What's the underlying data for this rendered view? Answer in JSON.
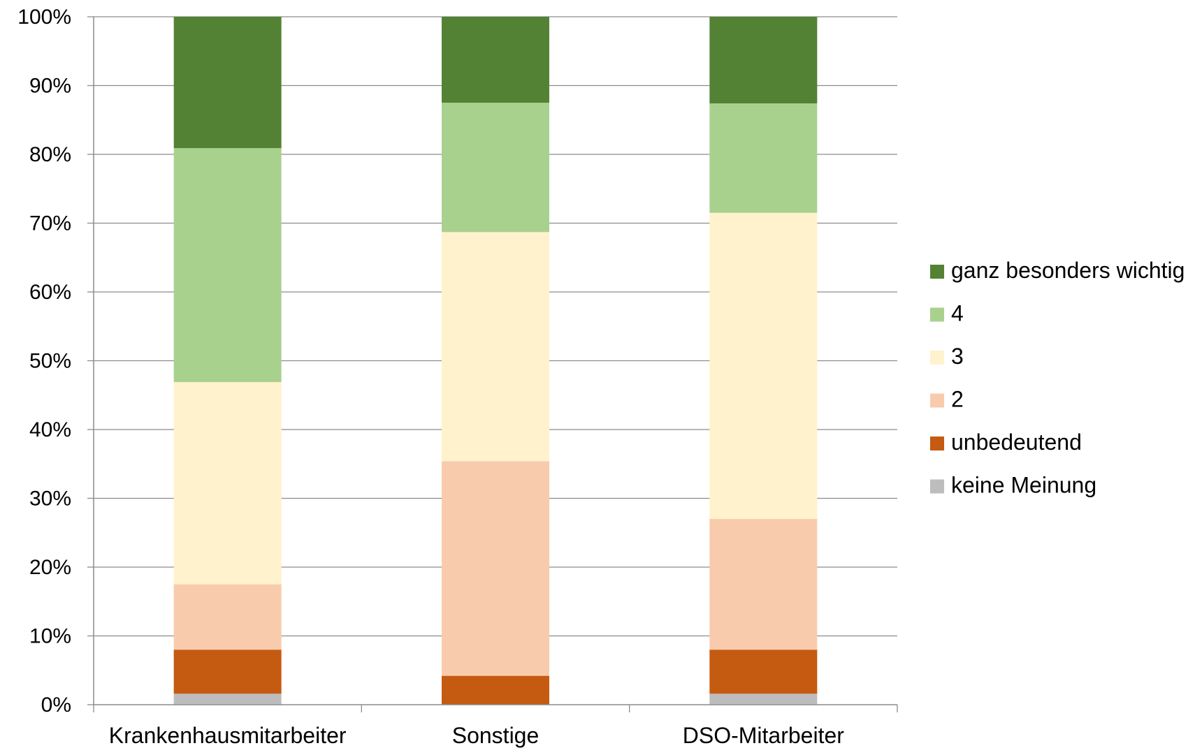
{
  "chart_data": {
    "type": "bar",
    "stacked": true,
    "percent_stacked": true,
    "categories": [
      "Krankenhausmitarbeiter",
      "Sonstige",
      "DSO-Mitarbeiter"
    ],
    "series": [
      {
        "name": "keine Meinung",
        "color": "#bdbdbd",
        "values": [
          1.6,
          0,
          1.6
        ]
      },
      {
        "name": "unbedeutend",
        "color": "#c55a11",
        "values": [
          6.4,
          4.2,
          6.4
        ]
      },
      {
        "name": "2",
        "color": "#f8cbad",
        "values": [
          9.5,
          31.2,
          19.0
        ]
      },
      {
        "name": "3",
        "color": "#fff2cc",
        "values": [
          29.4,
          33.3,
          44.5
        ]
      },
      {
        "name": "4",
        "color": "#a9d18e",
        "values": [
          34.0,
          18.8,
          15.9
        ]
      },
      {
        "name": "ganz besonders wichtig",
        "color": "#548235",
        "values": [
          19.1,
          12.5,
          12.6
        ]
      }
    ],
    "ylim": [
      0,
      100
    ],
    "yticks": [
      "0%",
      "10%",
      "20%",
      "30%",
      "40%",
      "50%",
      "60%",
      "70%",
      "80%",
      "90%",
      "100%"
    ],
    "grid": true,
    "legend_position": "right",
    "legend_order": [
      "ganz besonders wichtig",
      "4",
      "3",
      "2",
      "unbedeutend",
      "keine Meinung"
    ]
  }
}
